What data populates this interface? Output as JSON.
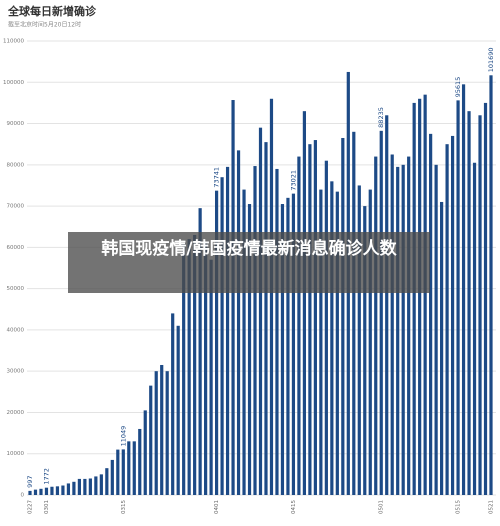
{
  "chart_data": {
    "type": "bar",
    "title": "全球每日新增确诊",
    "subtitle": "截至北京时间5月20日12时",
    "categories": [
      "0227",
      null,
      null,
      "0301",
      null,
      null,
      null,
      null,
      null,
      null,
      null,
      null,
      null,
      null,
      null,
      null,
      null,
      "0315",
      null,
      null,
      null,
      null,
      null,
      null,
      null,
      null,
      null,
      null,
      null,
      null,
      null,
      null,
      null,
      null,
      "0401",
      null,
      null,
      null,
      null,
      null,
      null,
      null,
      null,
      null,
      null,
      null,
      null,
      null,
      "0415",
      null,
      null,
      null,
      null,
      null,
      null,
      null,
      null,
      null,
      null,
      null,
      null,
      null,
      null,
      null,
      "0501",
      null,
      null,
      null,
      null,
      null,
      null,
      null,
      null,
      null,
      null,
      null,
      null,
      null,
      "0515",
      null,
      null,
      null,
      null,
      null,
      "0521"
    ],
    "values": [
      997,
      1300,
      1500,
      1772,
      2000,
      2100,
      2300,
      2800,
      3200,
      3900,
      3900,
      4000,
      4500,
      5000,
      6500,
      8500,
      11000,
      11049,
      13000,
      13000,
      16000,
      20500,
      26500,
      30000,
      31500,
      30000,
      44000,
      41000,
      61000,
      62000,
      63000,
      69500,
      61000,
      57000,
      73741,
      77000,
      79500,
      95700,
      83500,
      74000,
      70500,
      79700,
      89000,
      85500,
      96000,
      79000,
      70500,
      72000,
      73021,
      82000,
      93000,
      85000,
      86000,
      74000,
      81000,
      76000,
      73500,
      86500,
      102500,
      88000,
      75000,
      70000,
      74000,
      82000,
      88235,
      92000,
      82500,
      79500,
      80000,
      82000,
      95000,
      96000,
      97000,
      87500,
      80000,
      71000,
      85000,
      87000,
      95615,
      99500,
      93000,
      80500,
      92000,
      95000,
      101690
    ],
    "labeled": [
      0,
      3,
      17,
      34,
      48,
      64,
      78,
      84
    ],
    "color": "#1d4a86",
    "ylim": [
      0,
      110000
    ],
    "yticks": [
      0,
      10000,
      20000,
      30000,
      40000,
      50000,
      60000,
      70000,
      80000,
      90000,
      100000,
      110000
    ],
    "grid": true
  },
  "overlay": {
    "text": "韩国现疫情/韩国疫情最新消息确诊人数"
  }
}
